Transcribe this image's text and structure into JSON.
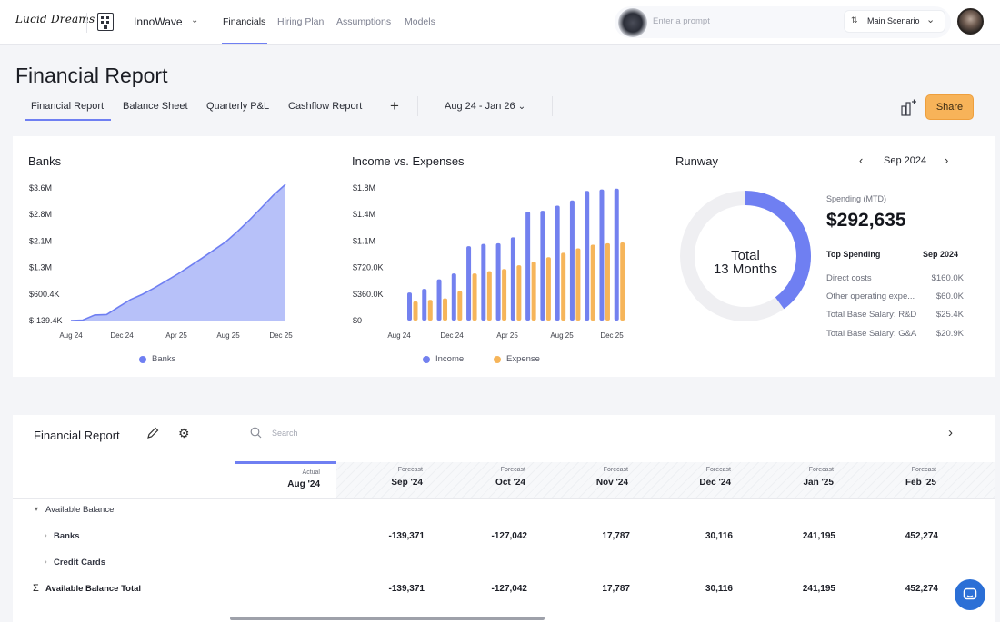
{
  "header": {
    "logo_text": "Lucid Dreams",
    "company": "InnoWave",
    "nav": [
      "Financials",
      "Hiring Plan",
      "Assumptions",
      "Models"
    ],
    "prompt_placeholder": "Enter a prompt",
    "scenario": "Main Scenario"
  },
  "page": {
    "title": "Financial Report",
    "tabs": [
      "Financial Report",
      "Balance Sheet",
      "Quarterly P&L",
      "Cashflow Report"
    ],
    "add_tab": "+",
    "date_range": "Aug 24 - Jan 26",
    "share_label": "Share"
  },
  "banks_chart": {
    "title": "Banks",
    "legend": "Banks",
    "color": "#6f7ff2",
    "fill": "#aab6f8"
  },
  "income_chart": {
    "title": "Income vs. Expenses",
    "legend_income": "Income",
    "legend_expense": "Expense",
    "income_color": "#7381ef",
    "expense_color": "#f6b55a"
  },
  "chart_data": [
    {
      "type": "area",
      "yticks": [
        "$3.6M",
        "$2.8M",
        "$2.1M",
        "$1.3M",
        "$600.4K",
        "$-139.4K"
      ],
      "xticks": [
        "Aug 24",
        "Dec 24",
        "Apr 25",
        "Aug 25",
        "Dec 25"
      ],
      "ylim": [
        -139.4,
        3600
      ],
      "series": [
        {
          "name": "Banks",
          "values": [
            -139,
            -127,
            18,
            30,
            241,
            452,
            600,
            780,
            980,
            1180,
            1400,
            1620,
            1850,
            2080,
            2380,
            2700,
            3050,
            3400,
            3700
          ]
        }
      ]
    },
    {
      "type": "bar",
      "yticks": [
        "$1.8M",
        "$1.4M",
        "$1.1M",
        "$720.0K",
        "$360.0K",
        "$0"
      ],
      "xticks": [
        "Aug 24",
        "Dec 24",
        "Apr 25",
        "Aug 25",
        "Dec 25"
      ],
      "ylim": [
        0,
        1800
      ],
      "series": [
        {
          "name": "Income",
          "values": [
            380,
            430,
            560,
            640,
            1010,
            1040,
            1050,
            1130,
            1480,
            1490,
            1560,
            1630,
            1760,
            1780,
            1790
          ]
        },
        {
          "name": "Expense",
          "values": [
            260,
            280,
            300,
            400,
            640,
            670,
            700,
            750,
            800,
            860,
            920,
            980,
            1030,
            1050,
            1060
          ]
        }
      ]
    },
    {
      "type": "pie",
      "values": [
        40,
        60
      ],
      "labels": [
        "elapsed",
        "remaining"
      ]
    }
  ],
  "runway": {
    "title": "Runway",
    "month": "Sep 2024",
    "donut_line1": "Total",
    "donut_line2": "13 Months",
    "spending_label": "Spending (MTD)",
    "spending_value": "$292,635",
    "top_spending": "Top Spending",
    "top_month": "Sep 2024",
    "items": [
      {
        "label": "Direct costs",
        "value": "$160.0K"
      },
      {
        "label": "Other operating expe...",
        "value": "$60.0K"
      },
      {
        "label": "Total Base Salary: R&D",
        "value": "$25.4K"
      },
      {
        "label": "Total Base Salary: G&A",
        "value": "$20.9K"
      }
    ]
  },
  "table": {
    "title": "Financial Report",
    "search_placeholder": "Search",
    "columns": [
      {
        "kind": "Actual",
        "month": "Aug '24"
      },
      {
        "kind": "Forecast",
        "month": "Sep '24"
      },
      {
        "kind": "Forecast",
        "month": "Oct '24"
      },
      {
        "kind": "Forecast",
        "month": "Nov '24"
      },
      {
        "kind": "Forecast",
        "month": "Dec '24"
      },
      {
        "kind": "Forecast",
        "month": "Jan '25"
      },
      {
        "kind": "Forecast",
        "month": "Feb '25"
      }
    ],
    "rows": [
      {
        "label": "Available Balance",
        "values": []
      },
      {
        "label": "Banks",
        "values": [
          "",
          "-139,371",
          "-127,042",
          "17,787",
          "30,116",
          "241,195",
          "452,274"
        ]
      },
      {
        "label": "Credit Cards",
        "values": []
      },
      {
        "label": "Available Balance Total",
        "values": [
          "",
          "-139,371",
          "-127,042",
          "17,787",
          "30,116",
          "241,195",
          "452,274"
        ]
      }
    ]
  }
}
